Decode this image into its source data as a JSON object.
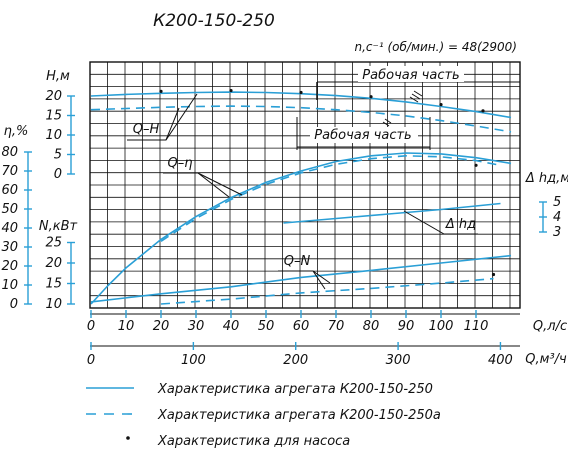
{
  "chart_data": {
    "type": "line",
    "title": "К200-150-250",
    "speed_label": "n,c⁻¹ (об/мин.) = 48(2900)",
    "colors": {
      "axis": "#111111",
      "grid": "#111111",
      "curve": "#2a9fd6",
      "text": "#111111"
    },
    "grid": true,
    "x_axes": {
      "q_ls": {
        "label": "Q,л/с",
        "range": [
          0,
          120
        ],
        "ticks": [
          0,
          10,
          20,
          30,
          40,
          50,
          60,
          70,
          80,
          90,
          100,
          110
        ]
      },
      "q_m3h": {
        "label": "Q,м³/ч",
        "range": [
          0,
          432
        ],
        "ticks": [
          0,
          100,
          200,
          300,
          400
        ]
      }
    },
    "y_axes": {
      "H": {
        "label": "H,м",
        "ticks": [
          0,
          5,
          10,
          15,
          20
        ]
      },
      "eta": {
        "label": "η,%",
        "ticks": [
          0,
          10,
          20,
          30,
          40,
          50,
          60,
          70,
          80
        ]
      },
      "N": {
        "label": "N,кВт",
        "ticks": [
          10,
          15,
          20,
          25
        ]
      },
      "dhd": {
        "label": "Δ hд,м",
        "ticks": [
          3,
          4,
          5
        ]
      }
    },
    "curve_labels": {
      "QH": "Q–H",
      "Qeta": "Q–η",
      "QN": "Q–N",
      "dhd": "Δ hд"
    },
    "work_zone_label": "Рабочая часть",
    "series": [
      {
        "id": "QH_250",
        "axis": "H",
        "style": "solid",
        "x": [
          0,
          10,
          20,
          30,
          40,
          50,
          60,
          70,
          80,
          90,
          100,
          110,
          120
        ],
        "y": [
          20.0,
          20.4,
          20.7,
          20.9,
          21.0,
          20.9,
          20.6,
          20.1,
          19.4,
          18.5,
          17.3,
          16.0,
          14.5
        ]
      },
      {
        "id": "QH_250a",
        "axis": "H",
        "style": "dashed",
        "x": [
          0,
          10,
          20,
          30,
          40,
          50,
          60,
          70,
          80,
          90,
          100,
          110,
          120
        ],
        "y": [
          16.5,
          16.8,
          17.1,
          17.3,
          17.4,
          17.3,
          17.0,
          16.5,
          15.8,
          14.9,
          13.7,
          12.3,
          10.8
        ]
      },
      {
        "id": "Qeta_250",
        "axis": "eta",
        "style": "solid",
        "x": [
          0,
          5,
          10,
          20,
          30,
          40,
          50,
          60,
          70,
          80,
          90,
          100,
          110,
          120
        ],
        "y": [
          0,
          10,
          19,
          34,
          46,
          56,
          64,
          70,
          75,
          78,
          79.5,
          79,
          77,
          74
        ]
      },
      {
        "id": "Qeta_250a",
        "axis": "eta",
        "style": "dashed",
        "x": [
          20,
          30,
          40,
          50,
          60,
          70,
          80,
          90,
          100,
          110,
          117
        ],
        "y": [
          33,
          45,
          55,
          63,
          69,
          73.5,
          76.5,
          78,
          77.5,
          75.5,
          73
        ]
      },
      {
        "id": "QN_250",
        "axis": "N",
        "style": "solid",
        "x": [
          0,
          20,
          40,
          60,
          80,
          100,
          120
        ],
        "y": [
          10.5,
          12.5,
          14.2,
          16.5,
          18.2,
          20.0,
          21.8
        ]
      },
      {
        "id": "QN_250a",
        "axis": "N",
        "style": "dashed",
        "x": [
          20,
          40,
          60,
          80,
          100,
          115
        ],
        "y": [
          10.0,
          11.2,
          12.7,
          13.8,
          15.1,
          16.2
        ]
      },
      {
        "id": "dhd",
        "axis": "dhd",
        "style": "solid",
        "x": [
          55,
          70,
          85,
          100,
          117
        ],
        "y": [
          3.6,
          3.9,
          4.2,
          4.5,
          4.9
        ]
      }
    ],
    "pump_points": [
      {
        "axis": "H",
        "x": [
          20,
          40,
          60,
          80,
          100,
          112
        ],
        "y": [
          21.2,
          21.4,
          20.9,
          19.8,
          17.8,
          16.2
        ]
      },
      {
        "axis": "eta",
        "x": [
          110
        ],
        "y": [
          73
        ]
      },
      {
        "axis": "N",
        "x": [
          115
        ],
        "y": [
          17.2
        ]
      }
    ],
    "legend": [
      {
        "style": "solid",
        "label": "Характеристика агрегата К200-150-250"
      },
      {
        "style": "dashed",
        "label": "Характеристика агрегата К200-150-250а"
      },
      {
        "style": "dot",
        "label": "Характеристика для насоса"
      }
    ]
  }
}
